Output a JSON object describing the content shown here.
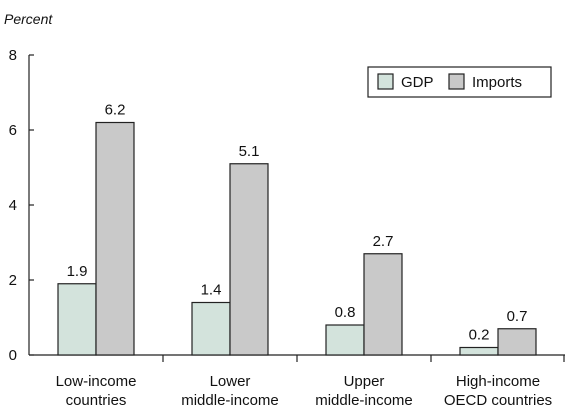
{
  "chart_data": {
    "type": "bar",
    "ylabel": "Percent",
    "ylim": [
      0,
      8
    ],
    "yticks": [
      "0",
      "2",
      "4",
      "6",
      "8"
    ],
    "grid": false,
    "legend_position": "top-right",
    "categories": [
      [
        "Low-income",
        "countries"
      ],
      [
        "Lower",
        "middle-income"
      ],
      [
        "Upper",
        "middle-income"
      ],
      [
        "High-income",
        "OECD countries"
      ]
    ],
    "series": [
      {
        "name": "GDP",
        "color": "#d3e3dc",
        "values": [
          1.9,
          1.4,
          0.8,
          0.2
        ],
        "labels": [
          "1.9",
          "1.4",
          "0.8",
          "0.2"
        ]
      },
      {
        "name": "Imports",
        "color": "#c9c9c9",
        "values": [
          6.2,
          5.1,
          2.7,
          0.7
        ],
        "labels": [
          "6.2",
          "5.1",
          "2.7",
          "0.7"
        ]
      }
    ]
  }
}
